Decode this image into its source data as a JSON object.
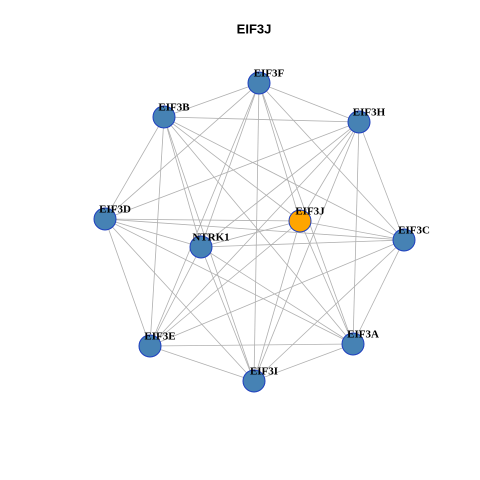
{
  "title": "EIF3J",
  "nodes": [
    {
      "label": "EIF3F"
    },
    {
      "label": "EIF3B"
    },
    {
      "label": "EIF3H"
    },
    {
      "label": "EIF3D"
    },
    {
      "label": "EIF3J"
    },
    {
      "label": "NTRK1"
    },
    {
      "label": "EIF3C"
    },
    {
      "label": "EIF3E"
    },
    {
      "label": "EIF3A"
    },
    {
      "label": "EIF3I"
    }
  ]
}
